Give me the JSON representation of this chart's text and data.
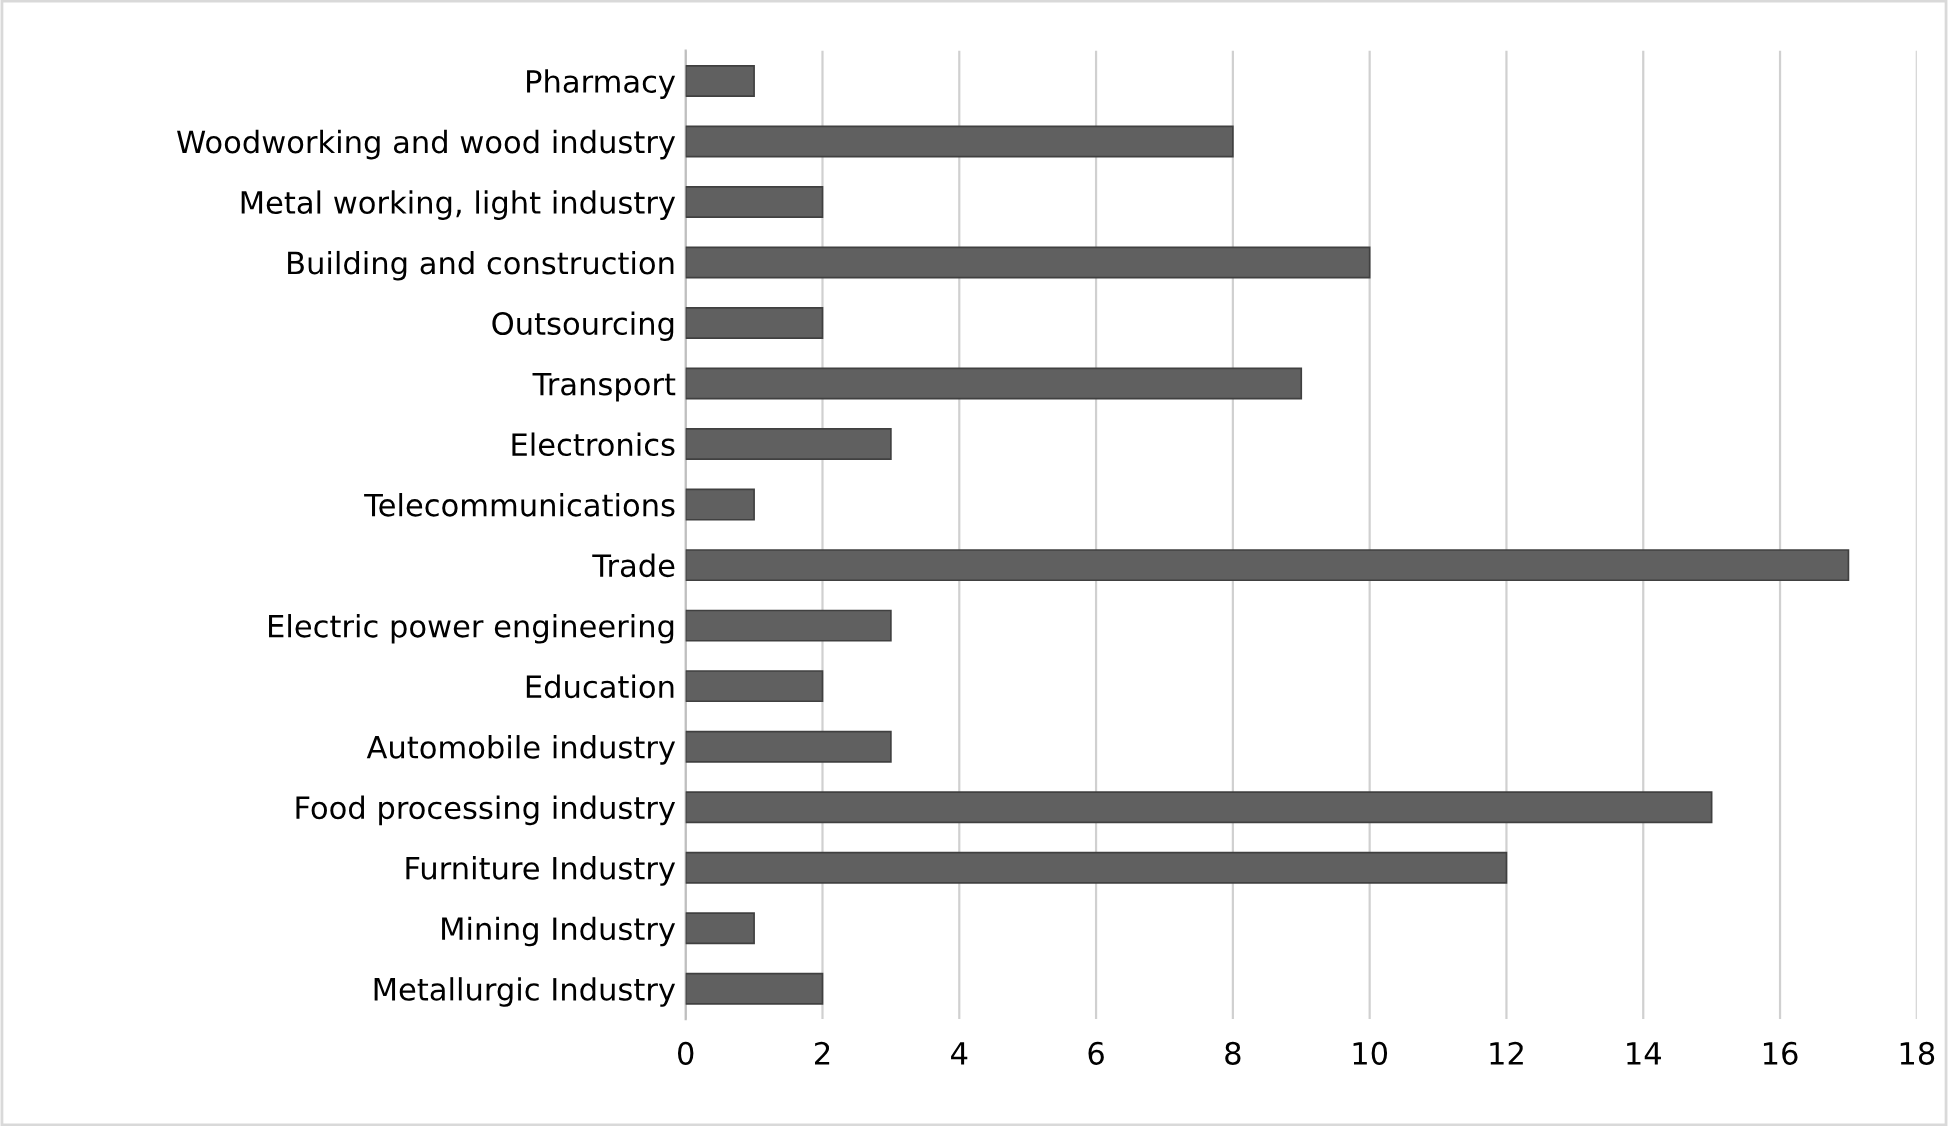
{
  "chart_data": {
    "type": "bar",
    "orientation": "horizontal",
    "categories": [
      "Pharmacy",
      "Woodworking and wood industry",
      "Metal working, light industry",
      "Building and construction",
      "Outsourcing",
      "Transport",
      "Electronics",
      "Telecommunications",
      "Trade",
      "Electric power engineering",
      "Education",
      "Automobile industry",
      "Food processing industry",
      "Furniture Industry",
      "Mining Industry",
      "Metallurgic Industry"
    ],
    "values": [
      1,
      8,
      2,
      10,
      2,
      9,
      3,
      1,
      17,
      3,
      2,
      3,
      15,
      12,
      1,
      2
    ],
    "color": "#606060",
    "xlim": [
      0,
      18
    ],
    "xticks": [
      0,
      2,
      4,
      6,
      8,
      10,
      12,
      14,
      16,
      18
    ],
    "grid": "x",
    "legend": false
  }
}
